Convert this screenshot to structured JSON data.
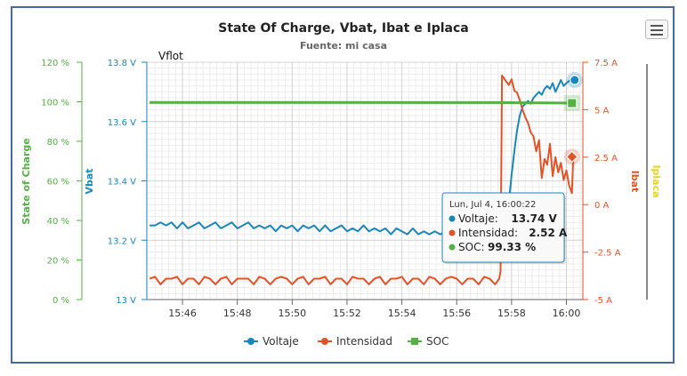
{
  "chart_data": {
    "type": "line",
    "title": "State Of Charge, Vbat, Ibat e Iplaca",
    "subtitle": "Fuente: mi casa",
    "annotation": "Vflot",
    "x_ticks": [
      "15:46",
      "15:48",
      "15:50",
      "15:52",
      "15:54",
      "15:56",
      "15:58",
      "16:00"
    ],
    "x_range_minutes": [
      -15.3,
      0.6
    ],
    "axes": {
      "soc": {
        "label": "State of Charge",
        "ticks": [
          "0 %",
          "20 %",
          "40 %",
          "60 %",
          "80 %",
          "100 %",
          "120 %"
        ],
        "range": [
          0,
          120
        ],
        "color": "#55b046"
      },
      "vbat": {
        "label": "Vbat",
        "ticks": [
          "13 V",
          "13.2 V",
          "13.4 V",
          "13.6 V",
          "13.8 V"
        ],
        "range": [
          13.0,
          13.8
        ],
        "color": "#1a87b8"
      },
      "ibat": {
        "label": "Ibat",
        "ticks": [
          "-5 A",
          "-2.5 A",
          "0 A",
          "2.5 A",
          "5 A",
          "7.5 A"
        ],
        "range": [
          -5,
          7.5
        ],
        "color": "#e0542a"
      },
      "iplaca": {
        "label": "Iplaca",
        "color": "#e8d21a"
      }
    },
    "series": [
      {
        "name": "Voltaje",
        "axis": "vbat",
        "color": "#1a87b8",
        "points": [
          [
            -15.2,
            13.25
          ],
          [
            -15.0,
            13.25
          ],
          [
            -14.8,
            13.26
          ],
          [
            -14.6,
            13.25
          ],
          [
            -14.4,
            13.26
          ],
          [
            -14.2,
            13.24
          ],
          [
            -14.0,
            13.26
          ],
          [
            -13.8,
            13.24
          ],
          [
            -13.6,
            13.25
          ],
          [
            -13.4,
            13.26
          ],
          [
            -13.2,
            13.24
          ],
          [
            -13.0,
            13.25
          ],
          [
            -12.8,
            13.26
          ],
          [
            -12.6,
            13.24
          ],
          [
            -12.4,
            13.25
          ],
          [
            -12.2,
            13.26
          ],
          [
            -12.0,
            13.24
          ],
          [
            -11.8,
            13.25
          ],
          [
            -11.6,
            13.26
          ],
          [
            -11.4,
            13.24
          ],
          [
            -11.2,
            13.25
          ],
          [
            -11.0,
            13.24
          ],
          [
            -10.8,
            13.25
          ],
          [
            -10.6,
            13.23
          ],
          [
            -10.4,
            13.25
          ],
          [
            -10.2,
            13.24
          ],
          [
            -10.0,
            13.25
          ],
          [
            -9.8,
            13.23
          ],
          [
            -9.6,
            13.25
          ],
          [
            -9.4,
            13.24
          ],
          [
            -9.2,
            13.25
          ],
          [
            -9.0,
            13.23
          ],
          [
            -8.8,
            13.25
          ],
          [
            -8.6,
            13.23
          ],
          [
            -8.4,
            13.24
          ],
          [
            -8.2,
            13.25
          ],
          [
            -8.0,
            13.23
          ],
          [
            -7.8,
            13.24
          ],
          [
            -7.6,
            13.23
          ],
          [
            -7.4,
            13.25
          ],
          [
            -7.2,
            13.23
          ],
          [
            -7.0,
            13.24
          ],
          [
            -6.8,
            13.23
          ],
          [
            -6.6,
            13.24
          ],
          [
            -6.4,
            13.22
          ],
          [
            -6.2,
            13.24
          ],
          [
            -6.0,
            13.23
          ],
          [
            -5.8,
            13.22
          ],
          [
            -5.6,
            13.24
          ],
          [
            -5.4,
            13.22
          ],
          [
            -5.2,
            13.23
          ],
          [
            -5.0,
            13.22
          ],
          [
            -4.8,
            13.23
          ],
          [
            -4.6,
            13.22
          ],
          [
            -4.4,
            13.23
          ],
          [
            -4.2,
            13.21
          ],
          [
            -4.0,
            13.23
          ],
          [
            -3.8,
            13.22
          ],
          [
            -3.6,
            13.21
          ],
          [
            -3.4,
            13.23
          ],
          [
            -3.2,
            13.22
          ],
          [
            -3.0,
            13.21
          ],
          [
            -2.8,
            13.22
          ],
          [
            -2.6,
            13.21
          ],
          [
            -2.4,
            13.22
          ],
          [
            -2.3,
            13.21
          ],
          [
            -2.2,
            13.25
          ],
          [
            -2.1,
            13.33
          ],
          [
            -2.0,
            13.42
          ],
          [
            -1.9,
            13.5
          ],
          [
            -1.8,
            13.57
          ],
          [
            -1.7,
            13.62
          ],
          [
            -1.6,
            13.65
          ],
          [
            -1.5,
            13.66
          ],
          [
            -1.4,
            13.67
          ],
          [
            -1.3,
            13.66
          ],
          [
            -1.2,
            13.68
          ],
          [
            -1.1,
            13.69
          ],
          [
            -1.0,
            13.7
          ],
          [
            -0.9,
            13.69
          ],
          [
            -0.8,
            13.71
          ],
          [
            -0.7,
            13.72
          ],
          [
            -0.6,
            13.71
          ],
          [
            -0.5,
            13.73
          ],
          [
            -0.4,
            13.7
          ],
          [
            -0.3,
            13.72
          ],
          [
            -0.2,
            13.74
          ],
          [
            -0.1,
            13.72
          ],
          [
            0.0,
            13.73
          ],
          [
            0.15,
            13.74
          ],
          [
            0.3,
            13.74
          ]
        ]
      },
      {
        "name": "Intensidad",
        "axis": "ibat",
        "color": "#e0542a",
        "points": [
          [
            -15.2,
            -3.9
          ],
          [
            -15.0,
            -3.8
          ],
          [
            -14.8,
            -4.2
          ],
          [
            -14.6,
            -3.9
          ],
          [
            -14.4,
            -3.9
          ],
          [
            -14.2,
            -3.8
          ],
          [
            -14.0,
            -4.2
          ],
          [
            -13.8,
            -3.9
          ],
          [
            -13.6,
            -3.9
          ],
          [
            -13.4,
            -4.2
          ],
          [
            -13.2,
            -3.8
          ],
          [
            -13.0,
            -3.9
          ],
          [
            -12.8,
            -4.2
          ],
          [
            -12.6,
            -3.9
          ],
          [
            -12.4,
            -3.8
          ],
          [
            -12.2,
            -4.2
          ],
          [
            -12.0,
            -3.9
          ],
          [
            -11.8,
            -3.9
          ],
          [
            -11.6,
            -3.9
          ],
          [
            -11.4,
            -4.2
          ],
          [
            -11.2,
            -3.8
          ],
          [
            -11.0,
            -3.9
          ],
          [
            -10.8,
            -4.2
          ],
          [
            -10.6,
            -3.9
          ],
          [
            -10.4,
            -3.8
          ],
          [
            -10.2,
            -3.9
          ],
          [
            -10.0,
            -4.2
          ],
          [
            -9.8,
            -3.9
          ],
          [
            -9.6,
            -3.8
          ],
          [
            -9.4,
            -4.2
          ],
          [
            -9.2,
            -3.9
          ],
          [
            -9.0,
            -3.9
          ],
          [
            -8.8,
            -3.8
          ],
          [
            -8.6,
            -4.2
          ],
          [
            -8.4,
            -3.9
          ],
          [
            -8.2,
            -3.9
          ],
          [
            -8.0,
            -4.2
          ],
          [
            -7.8,
            -3.8
          ],
          [
            -7.6,
            -3.9
          ],
          [
            -7.4,
            -3.9
          ],
          [
            -7.2,
            -4.2
          ],
          [
            -7.0,
            -3.9
          ],
          [
            -6.8,
            -3.8
          ],
          [
            -6.6,
            -4.2
          ],
          [
            -6.4,
            -3.9
          ],
          [
            -6.2,
            -3.9
          ],
          [
            -6.0,
            -3.8
          ],
          [
            -5.8,
            -4.2
          ],
          [
            -5.6,
            -3.9
          ],
          [
            -5.4,
            -3.9
          ],
          [
            -5.2,
            -4.2
          ],
          [
            -5.0,
            -3.8
          ],
          [
            -4.8,
            -3.9
          ],
          [
            -4.6,
            -4.2
          ],
          [
            -4.4,
            -3.9
          ],
          [
            -4.2,
            -3.8
          ],
          [
            -4.0,
            -3.9
          ],
          [
            -3.8,
            -4.2
          ],
          [
            -3.6,
            -3.9
          ],
          [
            -3.4,
            -3.9
          ],
          [
            -3.2,
            -4.2
          ],
          [
            -3.0,
            -3.8
          ],
          [
            -2.8,
            -3.9
          ],
          [
            -2.6,
            -4.2
          ],
          [
            -2.45,
            -3.9
          ],
          [
            -2.4,
            -3.5
          ],
          [
            -2.35,
            6.8
          ],
          [
            -2.2,
            6.5
          ],
          [
            -2.1,
            6.3
          ],
          [
            -2.0,
            6.6
          ],
          [
            -1.9,
            6.0
          ],
          [
            -1.8,
            5.9
          ],
          [
            -1.7,
            5.5
          ],
          [
            -1.6,
            5.0
          ],
          [
            -1.5,
            4.6
          ],
          [
            -1.4,
            4.3
          ],
          [
            -1.3,
            3.8
          ],
          [
            -1.2,
            3.6
          ],
          [
            -1.1,
            2.8
          ],
          [
            -1.0,
            3.4
          ],
          [
            -0.9,
            1.4
          ],
          [
            -0.8,
            2.4
          ],
          [
            -0.7,
            2.1
          ],
          [
            -0.6,
            3.2
          ],
          [
            -0.5,
            1.5
          ],
          [
            -0.4,
            2.5
          ],
          [
            -0.3,
            1.7
          ],
          [
            -0.2,
            2.2
          ],
          [
            -0.1,
            1.3
          ],
          [
            0.0,
            1.8
          ],
          [
            0.1,
            1.0
          ],
          [
            0.2,
            0.6
          ],
          [
            0.25,
            2.52
          ]
        ]
      },
      {
        "name": "SOC",
        "axis": "soc",
        "color": "#55b046",
        "points": [
          [
            -15.2,
            99.7
          ],
          [
            -2.4,
            99.6
          ],
          [
            -1.5,
            99.5
          ],
          [
            0.3,
            99.33
          ]
        ]
      }
    ],
    "legend": {
      "placement": "bottom-center",
      "items": [
        "Voltaje",
        "Intensidad",
        "SOC"
      ]
    },
    "tooltip": {
      "header": "Lun, Jul 4, 16:00:22",
      "rows": [
        {
          "label": "Voltaje: ",
          "value": "13.74 V",
          "color": "#1a87b8"
        },
        {
          "label": "Intensidad: ",
          "value": "2.52 A",
          "color": "#e0542a"
        },
        {
          "label": "SOC: ",
          "value": "99.33 %",
          "color": "#55b046"
        }
      ]
    },
    "grid": true
  }
}
